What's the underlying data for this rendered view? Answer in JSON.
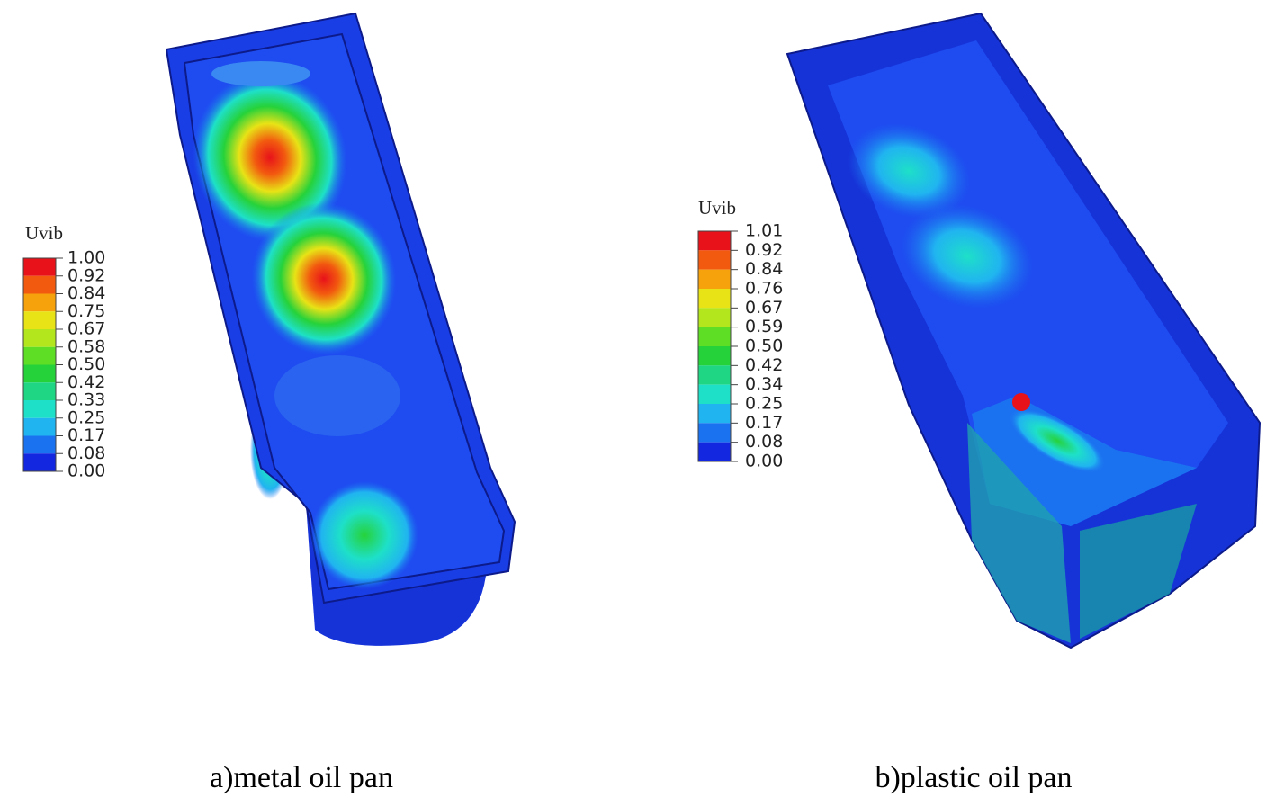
{
  "panels": [
    {
      "legend": {
        "title": "Uvib",
        "labels": [
          "1.00",
          "0.92",
          "0.84",
          "0.75",
          "0.67",
          "0.58",
          "0.50",
          "0.42",
          "0.33",
          "0.25",
          "0.17",
          "0.08",
          "0.00"
        ],
        "colors": [
          "#e8121a",
          "#f25a0f",
          "#f5a20c",
          "#e8e316",
          "#b3e61c",
          "#5ede24",
          "#26d23a",
          "#1fd685",
          "#1ee0c8",
          "#20b4f0",
          "#1b72f0",
          "#1427e0"
        ]
      },
      "caption": "a)metal oil pan"
    },
    {
      "legend": {
        "title": "Uvib",
        "labels": [
          "1.01",
          "0.92",
          "0.84",
          "0.76",
          "0.67",
          "0.59",
          "0.50",
          "0.42",
          "0.34",
          "0.25",
          "0.17",
          "0.08",
          "0.00"
        ],
        "colors": [
          "#e8121a",
          "#f25a0f",
          "#f5a20c",
          "#e8e316",
          "#b3e61c",
          "#5ede24",
          "#26d23a",
          "#1fd685",
          "#1ee0c8",
          "#20b4f0",
          "#1b72f0",
          "#1427e0"
        ]
      },
      "caption": "b)plastic oil pan"
    }
  ]
}
